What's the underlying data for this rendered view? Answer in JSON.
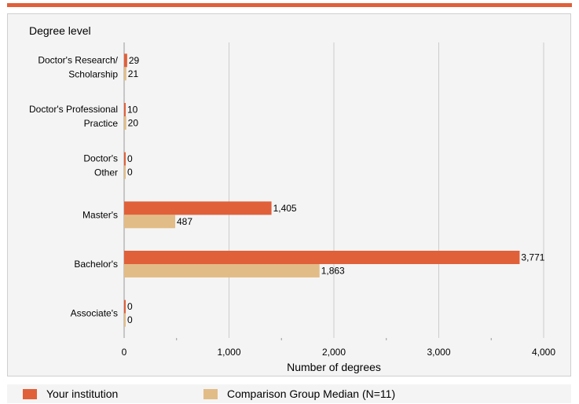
{
  "colors": {
    "accent": "#E0603A",
    "series1": "#E0603A",
    "series2": "#E2BC87",
    "grid": "#cccccc"
  },
  "legend": {
    "items": [
      {
        "label": "Your institution",
        "color": "#E0603A"
      },
      {
        "label": "Comparison Group Median (N=11)",
        "color": "#E2BC87"
      }
    ]
  },
  "chart_data": {
    "type": "bar",
    "orientation": "horizontal",
    "ylabel": "Degree level",
    "xlabel": "Number of degrees",
    "xlim": [
      0,
      4000
    ],
    "xticks": [
      0,
      1000,
      2000,
      3000,
      4000
    ],
    "xtick_labels": [
      "0",
      "1,000",
      "2,000",
      "3,000",
      "4,000"
    ],
    "grid": true,
    "legend_position": "bottom",
    "categories": [
      [
        "Doctor's Research/",
        "Scholarship"
      ],
      [
        "Doctor's Professional",
        "Practice"
      ],
      [
        "Doctor's",
        "Other"
      ],
      [
        "Master's"
      ],
      [
        "Bachelor's"
      ],
      [
        "Associate's"
      ]
    ],
    "series": [
      {
        "name": "Your institution",
        "values": [
          29,
          10,
          0,
          1405,
          3771,
          0
        ],
        "labels": [
          "29",
          "10",
          "0",
          "1,405",
          "3,771",
          "0"
        ]
      },
      {
        "name": "Comparison Group Median (N=11)",
        "values": [
          21,
          20,
          0,
          487,
          1863,
          0
        ],
        "labels": [
          "21",
          "20",
          "0",
          "487",
          "1,863",
          "0"
        ]
      }
    ]
  }
}
